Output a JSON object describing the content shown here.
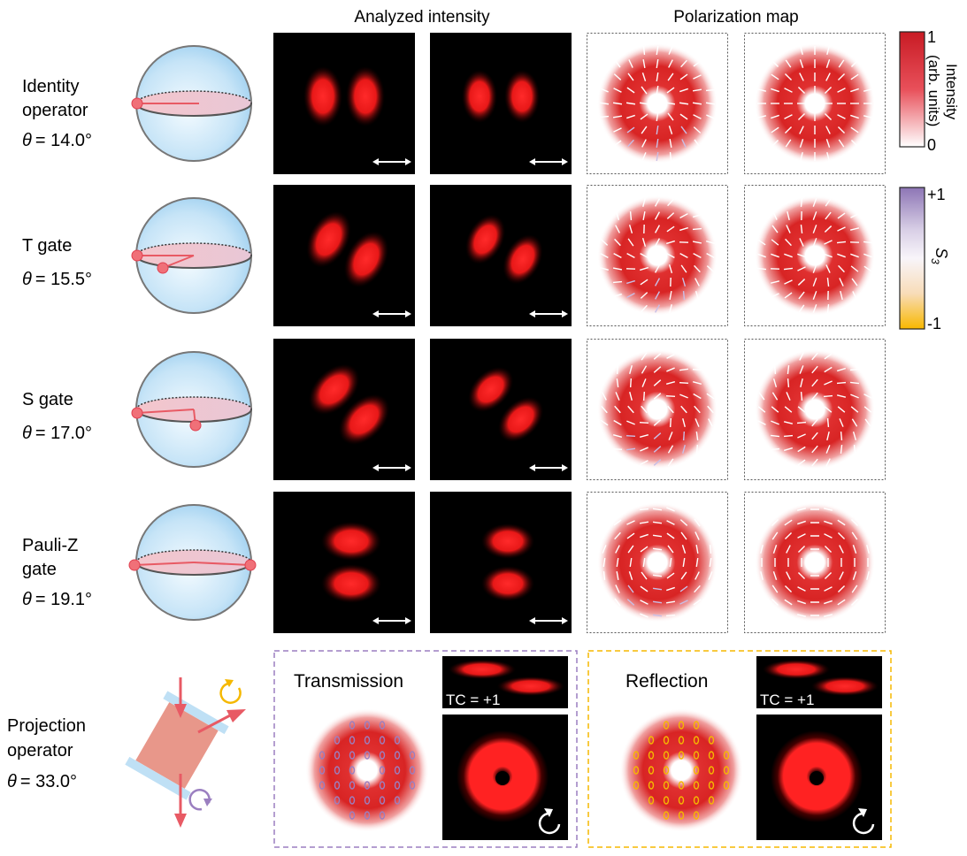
{
  "headers": {
    "analyzed": "Analyzed intensity",
    "polarization": "Polarization map"
  },
  "rows": [
    {
      "name": "identity",
      "line1": "Identity",
      "line2": "operator",
      "theta": "= 14.0°"
    },
    {
      "name": "t-gate",
      "line1": "T gate",
      "line2": "",
      "theta": "= 15.5°"
    },
    {
      "name": "s-gate",
      "line1": "S gate",
      "line2": "",
      "theta": "= 17.0°"
    },
    {
      "name": "pauli-z",
      "line1": "Pauli-Z",
      "line2": "gate",
      "theta": "= 19.1°"
    }
  ],
  "theta_symbol": "θ",
  "projection": {
    "line1": "Projection",
    "line2": "operator",
    "theta": "= 33.0°",
    "transmission": "Transmission",
    "reflection": "Reflection",
    "tc": "TC = +1"
  },
  "colorbars": {
    "intensity": {
      "label1": "Intensity",
      "label2": "(arb. units)",
      "max": "1",
      "min": "0"
    },
    "s3": {
      "label": "S",
      "sub": "3",
      "max": "+1",
      "min": "-1"
    }
  },
  "colors": {
    "red": "#e02020",
    "purple": "#9b7fc0",
    "orange": "#f5b800",
    "sphere": "#bfe0f5",
    "arrow": "#e85a64"
  }
}
